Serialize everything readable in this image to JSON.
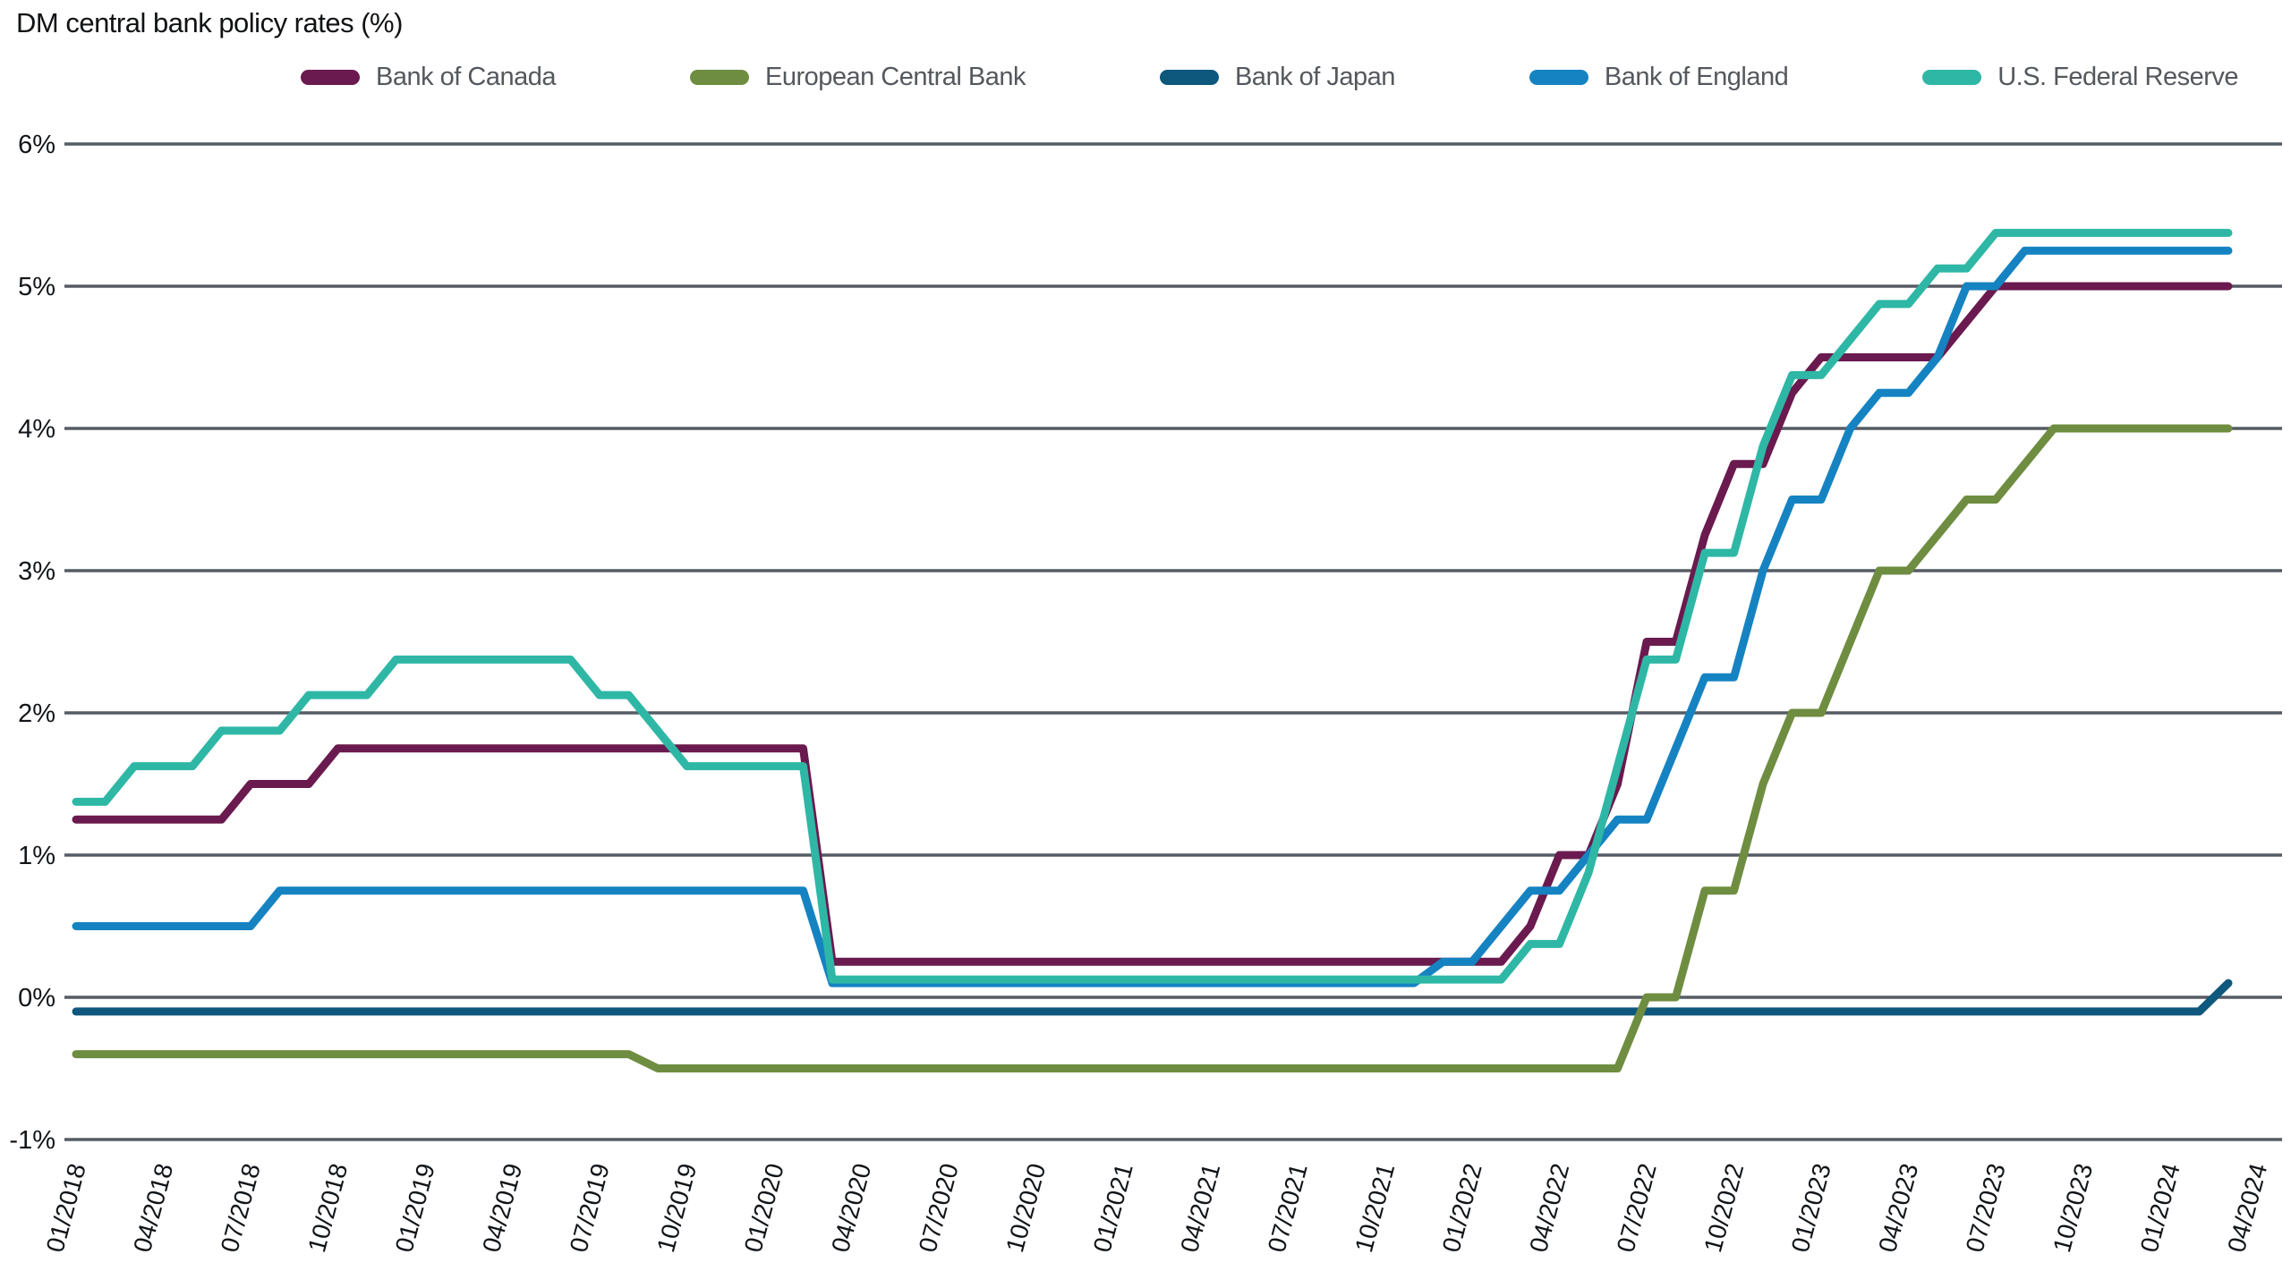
{
  "title": "DM central bank policy rates (%)",
  "colors": {
    "gridline": "#565c64",
    "tick_text": "#121518",
    "legend_text": "#54585d",
    "background": "#ffffff"
  },
  "chart_data": {
    "type": "line",
    "title": "DM central bank policy rates (%)",
    "xlabel": "",
    "ylabel": "",
    "x_start": "01/2018",
    "x_end": "03/2024",
    "x_frequency": "monthly",
    "ylim": [
      -1,
      6
    ],
    "grid": "horizontal",
    "legend_position": "top",
    "y_ticks": [
      {
        "label": "6%",
        "value": 6
      },
      {
        "label": "5%",
        "value": 5
      },
      {
        "label": "4%",
        "value": 4
      },
      {
        "label": "3%",
        "value": 3
      },
      {
        "label": "2%",
        "value": 2
      },
      {
        "label": "1%",
        "value": 1
      },
      {
        "label": "0%",
        "value": 0
      },
      {
        "label": "-1%",
        "value": -1
      }
    ],
    "x_tick_labels": [
      "01/2018",
      "04/2018",
      "07/2018",
      "10/2018",
      "01/2019",
      "04/2019",
      "07/2019",
      "10/2019",
      "01/2020",
      "04/2020",
      "07/2020",
      "10/2020",
      "01/2021",
      "04/2021",
      "07/2021",
      "10/2021",
      "01/2022",
      "04/2022",
      "07/2022",
      "10/2022",
      "01/2023",
      "04/2023",
      "07/2023",
      "10/2023",
      "01/2024",
      "04/2024"
    ],
    "series": [
      {
        "name": "Bank of Canada",
        "color": "#6a1a4e",
        "values": [
          1.25,
          1.25,
          1.25,
          1.25,
          1.25,
          1.25,
          1.5,
          1.5,
          1.5,
          1.75,
          1.75,
          1.75,
          1.75,
          1.75,
          1.75,
          1.75,
          1.75,
          1.75,
          1.75,
          1.75,
          1.75,
          1.75,
          1.75,
          1.75,
          1.75,
          1.75,
          0.25,
          0.25,
          0.25,
          0.25,
          0.25,
          0.25,
          0.25,
          0.25,
          0.25,
          0.25,
          0.25,
          0.25,
          0.25,
          0.25,
          0.25,
          0.25,
          0.25,
          0.25,
          0.25,
          0.25,
          0.25,
          0.25,
          0.25,
          0.25,
          0.5,
          1,
          1,
          1.5,
          2.5,
          2.5,
          3.25,
          3.75,
          3.75,
          4.25,
          4.5,
          4.5,
          4.5,
          4.5,
          4.5,
          4.75,
          5,
          5,
          5,
          5,
          5,
          5,
          5,
          5,
          5
        ]
      },
      {
        "name": "European Central Bank",
        "color": "#6f8d40",
        "values": [
          -0.4,
          -0.4,
          -0.4,
          -0.4,
          -0.4,
          -0.4,
          -0.4,
          -0.4,
          -0.4,
          -0.4,
          -0.4,
          -0.4,
          -0.4,
          -0.4,
          -0.4,
          -0.4,
          -0.4,
          -0.4,
          -0.4,
          -0.4,
          -0.5,
          -0.5,
          -0.5,
          -0.5,
          -0.5,
          -0.5,
          -0.5,
          -0.5,
          -0.5,
          -0.5,
          -0.5,
          -0.5,
          -0.5,
          -0.5,
          -0.5,
          -0.5,
          -0.5,
          -0.5,
          -0.5,
          -0.5,
          -0.5,
          -0.5,
          -0.5,
          -0.5,
          -0.5,
          -0.5,
          -0.5,
          -0.5,
          -0.5,
          -0.5,
          -0.5,
          -0.5,
          -0.5,
          -0.5,
          0,
          0,
          0.75,
          0.75,
          1.5,
          2,
          2,
          2.5,
          3,
          3,
          3.25,
          3.5,
          3.5,
          3.75,
          4,
          4,
          4,
          4,
          4,
          4,
          4
        ]
      },
      {
        "name": "Bank of Japan",
        "color": "#0e577d",
        "values": [
          -0.1,
          -0.1,
          -0.1,
          -0.1,
          -0.1,
          -0.1,
          -0.1,
          -0.1,
          -0.1,
          -0.1,
          -0.1,
          -0.1,
          -0.1,
          -0.1,
          -0.1,
          -0.1,
          -0.1,
          -0.1,
          -0.1,
          -0.1,
          -0.1,
          -0.1,
          -0.1,
          -0.1,
          -0.1,
          -0.1,
          -0.1,
          -0.1,
          -0.1,
          -0.1,
          -0.1,
          -0.1,
          -0.1,
          -0.1,
          -0.1,
          -0.1,
          -0.1,
          -0.1,
          -0.1,
          -0.1,
          -0.1,
          -0.1,
          -0.1,
          -0.1,
          -0.1,
          -0.1,
          -0.1,
          -0.1,
          -0.1,
          -0.1,
          -0.1,
          -0.1,
          -0.1,
          -0.1,
          -0.1,
          -0.1,
          -0.1,
          -0.1,
          -0.1,
          -0.1,
          -0.1,
          -0.1,
          -0.1,
          -0.1,
          -0.1,
          -0.1,
          -0.1,
          -0.1,
          -0.1,
          -0.1,
          -0.1,
          -0.1,
          -0.1,
          -0.1,
          0.1
        ]
      },
      {
        "name": "Bank of England",
        "color": "#1583c2",
        "values": [
          0.5,
          0.5,
          0.5,
          0.5,
          0.5,
          0.5,
          0.5,
          0.75,
          0.75,
          0.75,
          0.75,
          0.75,
          0.75,
          0.75,
          0.75,
          0.75,
          0.75,
          0.75,
          0.75,
          0.75,
          0.75,
          0.75,
          0.75,
          0.75,
          0.75,
          0.75,
          0.1,
          0.1,
          0.1,
          0.1,
          0.1,
          0.1,
          0.1,
          0.1,
          0.1,
          0.1,
          0.1,
          0.1,
          0.1,
          0.1,
          0.1,
          0.1,
          0.1,
          0.1,
          0.1,
          0.1,
          0.1,
          0.25,
          0.25,
          0.5,
          0.75,
          0.75,
          1,
          1.25,
          1.25,
          1.75,
          2.25,
          2.25,
          3,
          3.5,
          3.5,
          4,
          4.25,
          4.25,
          4.5,
          5,
          5,
          5.25,
          5.25,
          5.25,
          5.25,
          5.25,
          5.25,
          5.25,
          5.25
        ]
      },
      {
        "name": "U.S. Federal Reserve",
        "color": "#2fb7a6",
        "values": [
          1.375,
          1.375,
          1.625,
          1.625,
          1.625,
          1.875,
          1.875,
          1.875,
          2.125,
          2.125,
          2.125,
          2.375,
          2.375,
          2.375,
          2.375,
          2.375,
          2.375,
          2.375,
          2.125,
          2.125,
          1.875,
          1.625,
          1.625,
          1.625,
          1.625,
          1.625,
          0.125,
          0.125,
          0.125,
          0.125,
          0.125,
          0.125,
          0.125,
          0.125,
          0.125,
          0.125,
          0.125,
          0.125,
          0.125,
          0.125,
          0.125,
          0.125,
          0.125,
          0.125,
          0.125,
          0.125,
          0.125,
          0.125,
          0.125,
          0.125,
          0.375,
          0.375,
          0.875,
          1.625,
          2.375,
          2.375,
          3.125,
          3.125,
          3.875,
          4.375,
          4.375,
          4.625,
          4.875,
          4.875,
          5.125,
          5.125,
          5.375,
          5.375,
          5.375,
          5.375,
          5.375,
          5.375,
          5.375,
          5.375,
          5.375
        ]
      }
    ]
  }
}
